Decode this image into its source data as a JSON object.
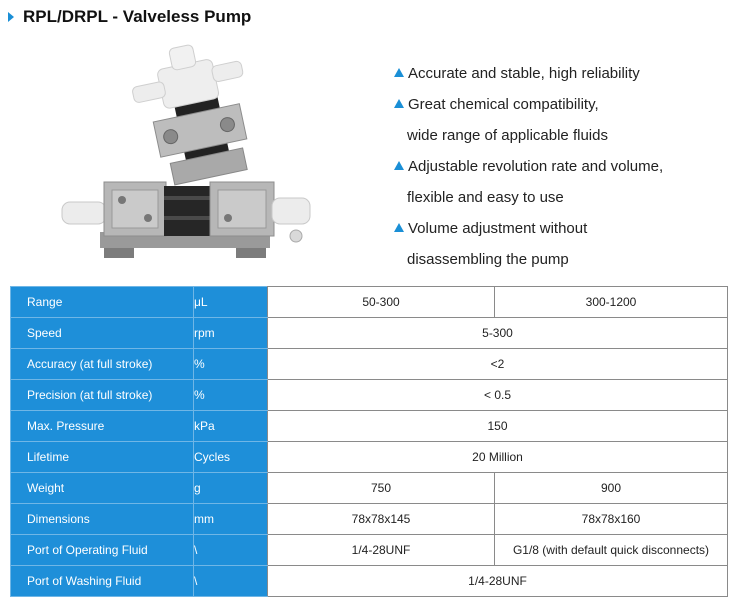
{
  "title": "RPL/DRPL - Valveless Pump",
  "colors": {
    "accent": "#1e8fd9",
    "border": "#8a8a8a"
  },
  "features": [
    {
      "lines": [
        "Accurate and stable, high reliability"
      ]
    },
    {
      "lines": [
        "Great chemical compatibility,",
        "wide range of applicable fluids"
      ]
    },
    {
      "lines": [
        "Adjustable revolution rate and volume,",
        "flexible and easy to use"
      ]
    },
    {
      "lines": [
        "Volume adjustment without",
        "disassembling the pump"
      ]
    }
  ],
  "spec_table": {
    "rows": [
      {
        "label": "Range",
        "unit": "μL",
        "values": [
          "50-300",
          "300-1200"
        ]
      },
      {
        "label": "Speed",
        "unit": "rpm",
        "values": [
          "5-300"
        ]
      },
      {
        "label": "Accuracy (at full stroke)",
        "unit": "%",
        "values": [
          "<2"
        ]
      },
      {
        "label": "Precision (at full stroke)",
        "unit": "%",
        "values": [
          "< 0.5"
        ]
      },
      {
        "label": "Max. Pressure",
        "unit": "kPa",
        "values": [
          "150"
        ]
      },
      {
        "label": "Lifetime",
        "unit": "Cycles",
        "values": [
          "20 Million"
        ]
      },
      {
        "label": "Weight",
        "unit": "g",
        "values": [
          "750",
          "900"
        ]
      },
      {
        "label": "Dimensions",
        "unit": "mm",
        "values": [
          "78x78x145",
          "78x78x160"
        ]
      },
      {
        "label": "Port of Operating Fluid",
        "unit": "\\",
        "values": [
          "1/4-28UNF",
          "G1/8 (with default quick disconnects)"
        ]
      },
      {
        "label": "Port of Washing Fluid",
        "unit": "\\",
        "values": [
          "1/4-28UNF"
        ]
      }
    ]
  }
}
